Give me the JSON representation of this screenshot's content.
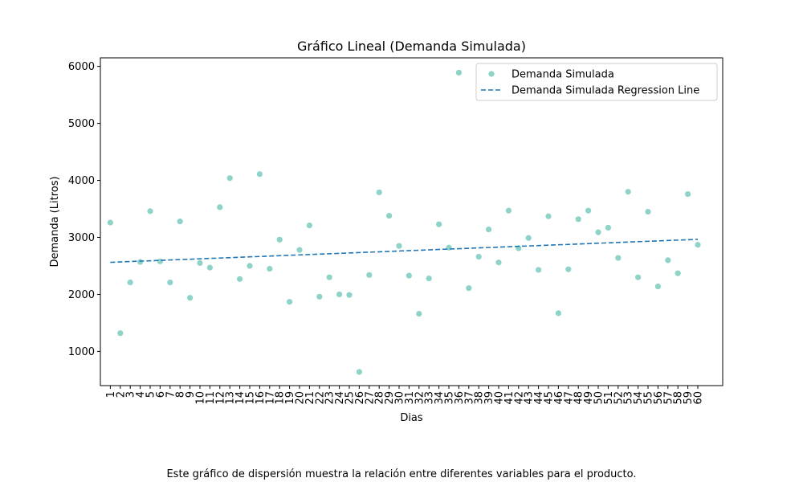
{
  "chart_data": {
    "type": "scatter",
    "title": "Gráfico Lineal (Demanda Simulada)",
    "xlabel": "Dias",
    "ylabel": "Demanda (Litros)",
    "xlim": [
      0.0,
      62.5
    ],
    "ylim": [
      400,
      6150
    ],
    "yticks": [
      1000,
      2000,
      3000,
      4000,
      5000,
      6000
    ],
    "x": [
      1,
      2,
      3,
      4,
      5,
      6,
      7,
      8,
      9,
      10,
      11,
      12,
      13,
      14,
      15,
      16,
      17,
      18,
      19,
      20,
      21,
      22,
      23,
      24,
      25,
      26,
      27,
      28,
      29,
      30,
      31,
      32,
      33,
      34,
      35,
      36,
      37,
      38,
      39,
      40,
      41,
      42,
      43,
      44,
      45,
      46,
      47,
      48,
      49,
      50,
      51,
      52,
      53,
      54,
      55,
      56,
      57,
      58,
      59,
      60
    ],
    "xtick_labels": [
      "1",
      "2",
      "3",
      "4",
      "5",
      "6",
      "7",
      "8",
      "9",
      "10",
      "11",
      "12",
      "13",
      "14",
      "15",
      "16",
      "17",
      "18",
      "19",
      "20",
      "21",
      "22",
      "23",
      "24",
      "25",
      "26",
      "27",
      "28",
      "29",
      "30",
      "31",
      "32",
      "33",
      "34",
      "35",
      "36",
      "37",
      "38",
      "39",
      "40",
      "41",
      "42",
      "43",
      "44",
      "45",
      "46",
      "47",
      "48",
      "49",
      "50",
      "51",
      "52",
      "53",
      "54",
      "55",
      "56",
      "57",
      "58",
      "59",
      "60"
    ],
    "series": [
      {
        "name": "Demanda Simulada",
        "kind": "scatter",
        "color": "#8dd3c7",
        "values": [
          3260,
          1320,
          2210,
          2570,
          3460,
          2580,
          2210,
          3280,
          1940,
          2550,
          2470,
          3530,
          4040,
          2270,
          2500,
          4110,
          2450,
          2960,
          1870,
          2780,
          3210,
          1960,
          2300,
          2000,
          1990,
          640,
          2340,
          3790,
          3380,
          2850,
          2330,
          1660,
          2280,
          3230,
          2820,
          5890,
          2110,
          2660,
          3140,
          2560,
          3470,
          2810,
          2990,
          2430,
          3370,
          1670,
          2440,
          3320,
          3470,
          3090,
          3170,
          2640,
          3800,
          2300,
          3450,
          2140,
          2600,
          2370,
          3760,
          2870
        ]
      },
      {
        "name": "Demanda Simulada Regression Line",
        "kind": "line",
        "style": "dashed",
        "color": "#1f77b4",
        "start": [
          1,
          2563
        ],
        "end": [
          60,
          2966
        ]
      }
    ],
    "legend_position": "top-right",
    "grid": false
  },
  "caption": "Este gráfico de dispersión muestra la relación entre diferentes variables para el producto."
}
